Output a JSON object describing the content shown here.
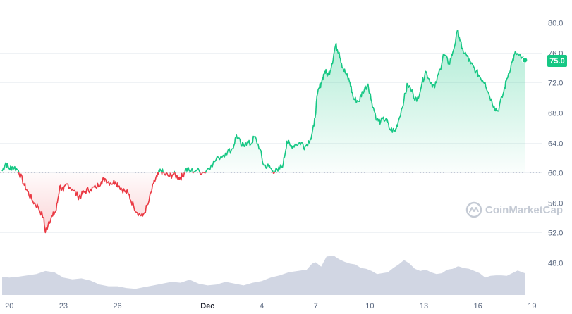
{
  "watermark": {
    "text": "CoinMarketCap"
  },
  "colors": {
    "up": "#16c784",
    "down": "#ea3943",
    "grid": "#eff2f5",
    "baseline": "#a6b0c3",
    "volume": "#d1d6e3",
    "text": "#58667e",
    "badge": "#16c784",
    "watermark": "#c4cad4"
  },
  "chart_data": {
    "type": "line",
    "title": "",
    "xlabel": "",
    "ylabel": "",
    "ylim": [
      48,
      82
    ],
    "y_ticks": [
      48.0,
      52.0,
      56.0,
      60.0,
      64.0,
      68.0,
      72.0,
      76.0,
      80.0
    ],
    "y_tick_labels": [
      "48.0",
      "52.0",
      "56.0",
      "60.0",
      "64.0",
      "68.0",
      "72.0",
      "76.0",
      "80.0"
    ],
    "x_domain": [
      19.6,
      49.3
    ],
    "x_ticks": [
      {
        "x": 20,
        "label": "20"
      },
      {
        "x": 23,
        "label": "23"
      },
      {
        "x": 26,
        "label": "26"
      },
      {
        "x": 31,
        "label": "Dec",
        "bold": true
      },
      {
        "x": 34,
        "label": "4"
      },
      {
        "x": 37,
        "label": "7"
      },
      {
        "x": 40,
        "label": "10"
      },
      {
        "x": 43,
        "label": "13"
      },
      {
        "x": 46,
        "label": "16"
      },
      {
        "x": 49,
        "label": "19"
      }
    ],
    "baseline": 60.0,
    "current_value_label": "75.0",
    "grid": true,
    "price_series": {
      "name": "",
      "points": [
        [
          19.6,
          60.2
        ],
        [
          19.8,
          61.3
        ],
        [
          20.0,
          60.5
        ],
        [
          20.2,
          60.8
        ],
        [
          20.5,
          60.3
        ],
        [
          20.8,
          58.5
        ],
        [
          21.0,
          57.5
        ],
        [
          21.3,
          56.2
        ],
        [
          21.6,
          55.4
        ],
        [
          21.9,
          54.0
        ],
        [
          22.0,
          52.0
        ],
        [
          22.2,
          53.5
        ],
        [
          22.4,
          54.2
        ],
        [
          22.6,
          55.0
        ],
        [
          22.8,
          58.2
        ],
        [
          23.0,
          57.5
        ],
        [
          23.2,
          58.5
        ],
        [
          23.5,
          57.8
        ],
        [
          23.8,
          56.8
        ],
        [
          24.0,
          57.0
        ],
        [
          24.2,
          57.5
        ],
        [
          24.5,
          57.8
        ],
        [
          24.8,
          58.0
        ],
        [
          25.1,
          58.8
        ],
        [
          25.3,
          59.2
        ],
        [
          25.6,
          58.6
        ],
        [
          25.9,
          58.8
        ],
        [
          26.1,
          58.2
        ],
        [
          26.4,
          57.5
        ],
        [
          26.6,
          57.2
        ],
        [
          26.9,
          55.5
        ],
        [
          27.2,
          54.5
        ],
        [
          27.4,
          54.2
        ],
        [
          27.7,
          55.8
        ],
        [
          28.0,
          58.5
        ],
        [
          28.2,
          59.5
        ],
        [
          28.4,
          60.3
        ],
        [
          28.6,
          59.8
        ],
        [
          28.9,
          59.5
        ],
        [
          29.1,
          59.8
        ],
        [
          29.4,
          59.3
        ],
        [
          29.6,
          59.5
        ],
        [
          29.8,
          60.5
        ],
        [
          30.0,
          60.2
        ],
        [
          30.4,
          60.3
        ],
        [
          30.8,
          60.0
        ],
        [
          31.2,
          61.0
        ],
        [
          31.6,
          62.0
        ],
        [
          32.0,
          62.6
        ],
        [
          32.4,
          63.2
        ],
        [
          32.6,
          65.0
        ],
        [
          32.9,
          63.5
        ],
        [
          33.1,
          64.0
        ],
        [
          33.4,
          63.8
        ],
        [
          33.6,
          64.8
        ],
        [
          33.9,
          63.2
        ],
        [
          34.1,
          61.0
        ],
        [
          34.4,
          60.8
        ],
        [
          34.6,
          60.3
        ],
        [
          34.9,
          60.2
        ],
        [
          35.2,
          61.2
        ],
        [
          35.4,
          64.2
        ],
        [
          35.6,
          63.5
        ],
        [
          35.9,
          63.8
        ],
        [
          36.2,
          64.0
        ],
        [
          36.4,
          63.4
        ],
        [
          36.7,
          64.5
        ],
        [
          36.9,
          66.2
        ],
        [
          37.1,
          70.5
        ],
        [
          37.3,
          72.0
        ],
        [
          37.5,
          73.5
        ],
        [
          37.7,
          73.0
        ],
        [
          37.9,
          74.5
        ],
        [
          38.1,
          77.0
        ],
        [
          38.3,
          76.0
        ],
        [
          38.5,
          74.0
        ],
        [
          38.7,
          73.0
        ],
        [
          38.9,
          72.0
        ],
        [
          39.1,
          69.8
        ],
        [
          39.4,
          69.5
        ],
        [
          39.6,
          70.8
        ],
        [
          39.9,
          71.8
        ],
        [
          40.1,
          69.5
        ],
        [
          40.4,
          67.0
        ],
        [
          40.6,
          66.8
        ],
        [
          40.9,
          67.2
        ],
        [
          41.1,
          65.8
        ],
        [
          41.4,
          65.5
        ],
        [
          41.6,
          67.0
        ],
        [
          41.9,
          69.8
        ],
        [
          42.1,
          71.8
        ],
        [
          42.4,
          70.5
        ],
        [
          42.6,
          69.5
        ],
        [
          42.9,
          72.0
        ],
        [
          43.1,
          73.5
        ],
        [
          43.4,
          72.0
        ],
        [
          43.6,
          71.3
        ],
        [
          43.9,
          73.8
        ],
        [
          44.1,
          75.8
        ],
        [
          44.4,
          74.5
        ],
        [
          44.6,
          76.0
        ],
        [
          44.9,
          79.0
        ],
        [
          45.1,
          76.5
        ],
        [
          45.4,
          75.5
        ],
        [
          45.6,
          74.5
        ],
        [
          45.9,
          73.5
        ],
        [
          46.1,
          72.8
        ],
        [
          46.4,
          72.0
        ],
        [
          46.6,
          70.5
        ],
        [
          46.9,
          68.8
        ],
        [
          47.1,
          68.2
        ],
        [
          47.4,
          70.5
        ],
        [
          47.6,
          72.5
        ],
        [
          47.9,
          74.8
        ],
        [
          48.1,
          76.0
        ],
        [
          48.4,
          75.2
        ],
        [
          48.6,
          75.0
        ]
      ]
    },
    "volume_series": {
      "name": "",
      "points": [
        [
          19.6,
          0.42
        ],
        [
          20.0,
          0.4
        ],
        [
          20.5,
          0.42
        ],
        [
          21.0,
          0.45
        ],
        [
          21.5,
          0.48
        ],
        [
          22.0,
          0.55
        ],
        [
          22.5,
          0.52
        ],
        [
          23.0,
          0.4
        ],
        [
          23.5,
          0.36
        ],
        [
          24.0,
          0.38
        ],
        [
          24.5,
          0.33
        ],
        [
          25.0,
          0.24
        ],
        [
          25.5,
          0.2
        ],
        [
          26.0,
          0.2
        ],
        [
          26.5,
          0.16
        ],
        [
          27.0,
          0.14
        ],
        [
          27.5,
          0.18
        ],
        [
          28.0,
          0.22
        ],
        [
          28.5,
          0.26
        ],
        [
          29.0,
          0.3
        ],
        [
          29.5,
          0.28
        ],
        [
          30.0,
          0.35
        ],
        [
          30.5,
          0.26
        ],
        [
          31.0,
          0.22
        ],
        [
          31.5,
          0.24
        ],
        [
          32.0,
          0.3
        ],
        [
          32.5,
          0.26
        ],
        [
          33.0,
          0.22
        ],
        [
          33.5,
          0.28
        ],
        [
          34.0,
          0.32
        ],
        [
          34.5,
          0.4
        ],
        [
          35.0,
          0.45
        ],
        [
          35.5,
          0.52
        ],
        [
          36.0,
          0.55
        ],
        [
          36.5,
          0.58
        ],
        [
          36.8,
          0.72
        ],
        [
          37.0,
          0.75
        ],
        [
          37.3,
          0.65
        ],
        [
          37.6,
          0.88
        ],
        [
          38.0,
          0.9
        ],
        [
          38.3,
          0.82
        ],
        [
          38.6,
          0.76
        ],
        [
          38.9,
          0.72
        ],
        [
          39.2,
          0.7
        ],
        [
          39.5,
          0.62
        ],
        [
          39.8,
          0.6
        ],
        [
          40.1,
          0.55
        ],
        [
          40.4,
          0.48
        ],
        [
          40.7,
          0.5
        ],
        [
          41.0,
          0.52
        ],
        [
          41.3,
          0.62
        ],
        [
          41.6,
          0.7
        ],
        [
          41.9,
          0.8
        ],
        [
          42.2,
          0.72
        ],
        [
          42.5,
          0.6
        ],
        [
          42.8,
          0.55
        ],
        [
          43.1,
          0.58
        ],
        [
          43.4,
          0.52
        ],
        [
          43.7,
          0.48
        ],
        [
          44.0,
          0.5
        ],
        [
          44.3,
          0.58
        ],
        [
          44.6,
          0.6
        ],
        [
          44.9,
          0.66
        ],
        [
          45.2,
          0.62
        ],
        [
          45.5,
          0.6
        ],
        [
          45.8,
          0.55
        ],
        [
          46.1,
          0.5
        ],
        [
          46.4,
          0.4
        ],
        [
          46.7,
          0.44
        ],
        [
          47.0,
          0.45
        ],
        [
          47.3,
          0.45
        ],
        [
          47.6,
          0.44
        ],
        [
          47.9,
          0.5
        ],
        [
          48.2,
          0.56
        ],
        [
          48.6,
          0.5
        ]
      ]
    }
  }
}
